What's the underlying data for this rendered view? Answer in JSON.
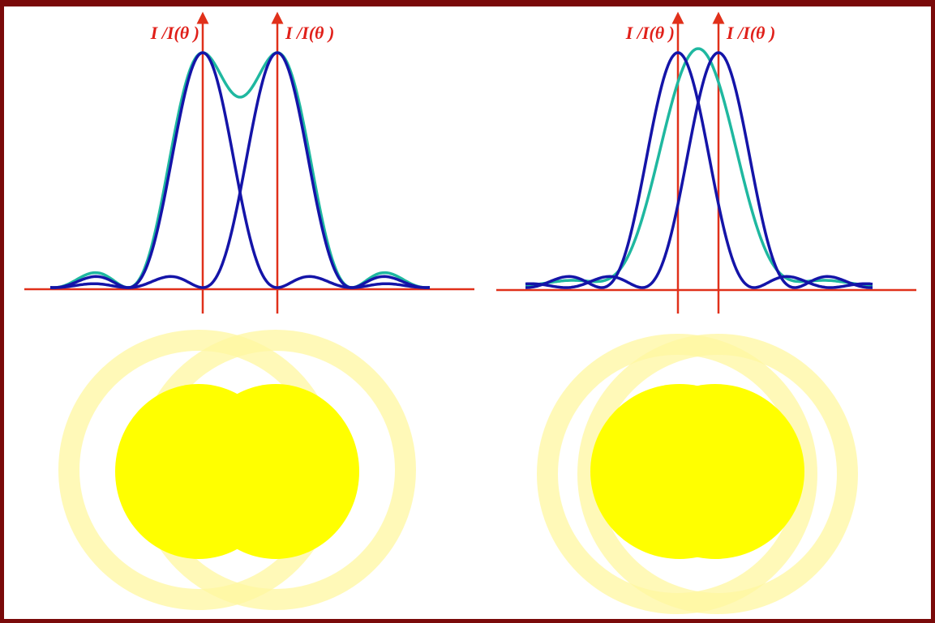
{
  "panels": [
    {
      "labels": [
        "I /I(θ )",
        "I /I(θ )"
      ]
    },
    {
      "labels": [
        "I /I(θ )",
        "I /I(θ )"
      ]
    }
  ]
}
